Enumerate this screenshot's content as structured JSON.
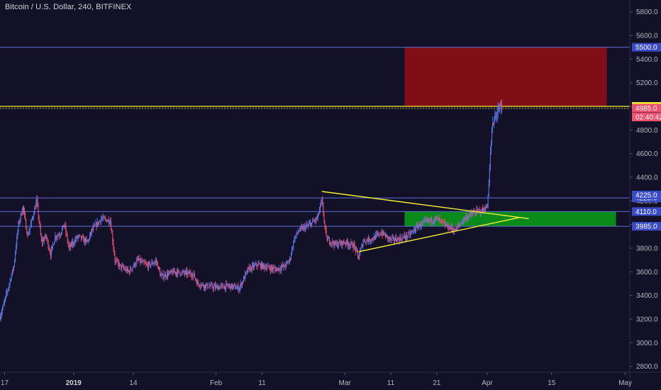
{
  "chart_title": "Bitcoin / U.S. Dollar, 240, BITFINEX",
  "colors": {
    "background": "#131128",
    "up": "#5b7cf0",
    "down": "#f0506e",
    "level": "#5b6fd6",
    "yellow": "#f5f032",
    "red_zone": "#800e16",
    "green_zone": "#0a8a1a"
  },
  "chart_data": {
    "type": "candlestick",
    "title": "Bitcoin / U.S. Dollar, 240, BITFINEX",
    "x_range": [
      "2018-12-16",
      "2019-05-02"
    ],
    "ylim": [
      2750,
      5900
    ],
    "y_ticks": [
      "2800.0",
      "3000.0",
      "3200.0",
      "3400.0",
      "3600.0",
      "3800.0",
      "4000.0",
      "4200.0",
      "4400.0",
      "4600.0",
      "4800.0",
      "5000.0",
      "5200.0",
      "5400.0",
      "5600.0",
      "5800.0"
    ],
    "x_ticks": [
      {
        "date": "2018-12-17",
        "label": "17",
        "bold": false
      },
      {
        "date": "2019-01-01",
        "label": "2019",
        "bold": true
      },
      {
        "date": "2019-01-14",
        "label": "14",
        "bold": false
      },
      {
        "date": "2019-02-01",
        "label": "Feb",
        "bold": false
      },
      {
        "date": "2019-02-11",
        "label": "11",
        "bold": false
      },
      {
        "date": "2019-03-01",
        "label": "Mar",
        "bold": false
      },
      {
        "date": "2019-03-11",
        "label": "11",
        "bold": false
      },
      {
        "date": "2019-03-21",
        "label": "21",
        "bold": false
      },
      {
        "date": "2019-04-01",
        "label": "Apr",
        "bold": false
      },
      {
        "date": "2019-04-15",
        "label": "15",
        "bold": false
      },
      {
        "date": "2019-05-01",
        "label": "May",
        "bold": false
      }
    ],
    "price_anchors": [
      [
        "2018-12-16",
        3220
      ],
      [
        "2018-12-17",
        3350
      ],
      [
        "2018-12-19",
        3650
      ],
      [
        "2018-12-20",
        4000
      ],
      [
        "2018-12-21",
        4150
      ],
      [
        "2018-12-22",
        3900
      ],
      [
        "2018-12-23",
        4050
      ],
      [
        "2018-12-24",
        4200
      ],
      [
        "2018-12-25",
        3850
      ],
      [
        "2018-12-26",
        3900
      ],
      [
        "2018-12-27",
        3750
      ],
      [
        "2018-12-28",
        3900
      ],
      [
        "2018-12-29",
        3920
      ],
      [
        "2018-12-30",
        4000
      ],
      [
        "2018-12-31",
        3800
      ],
      [
        "2019-01-01",
        3850
      ],
      [
        "2019-01-02",
        3900
      ],
      [
        "2019-01-04",
        3850
      ],
      [
        "2019-01-05",
        3950
      ],
      [
        "2019-01-07",
        4050
      ],
      [
        "2019-01-09",
        4030
      ],
      [
        "2019-01-10",
        3700
      ],
      [
        "2019-01-11",
        3650
      ],
      [
        "2019-01-13",
        3600
      ],
      [
        "2019-01-15",
        3700
      ],
      [
        "2019-01-17",
        3650
      ],
      [
        "2019-01-19",
        3690
      ],
      [
        "2019-01-20",
        3560
      ],
      [
        "2019-01-23",
        3600
      ],
      [
        "2019-01-25",
        3590
      ],
      [
        "2019-01-27",
        3580
      ],
      [
        "2019-01-28",
        3500
      ],
      [
        "2019-01-30",
        3480
      ],
      [
        "2019-02-01",
        3470
      ],
      [
        "2019-02-04",
        3480
      ],
      [
        "2019-02-06",
        3460
      ],
      [
        "2019-02-08",
        3620
      ],
      [
        "2019-02-10",
        3660
      ],
      [
        "2019-02-12",
        3640
      ],
      [
        "2019-02-14",
        3620
      ],
      [
        "2019-02-16",
        3650
      ],
      [
        "2019-02-17",
        3700
      ],
      [
        "2019-02-18",
        3880
      ],
      [
        "2019-02-19",
        3950
      ],
      [
        "2019-02-21",
        3990
      ],
      [
        "2019-02-23",
        4050
      ],
      [
        "2019-02-24",
        4200
      ],
      [
        "2019-02-25",
        3880
      ],
      [
        "2019-02-27",
        3830
      ],
      [
        "2019-03-01",
        3850
      ],
      [
        "2019-03-03",
        3820
      ],
      [
        "2019-03-04",
        3720
      ],
      [
        "2019-03-05",
        3860
      ],
      [
        "2019-03-07",
        3880
      ],
      [
        "2019-03-09",
        3930
      ],
      [
        "2019-03-11",
        3870
      ],
      [
        "2019-03-13",
        3880
      ],
      [
        "2019-03-15",
        3910
      ],
      [
        "2019-03-17",
        3990
      ],
      [
        "2019-03-19",
        4030
      ],
      [
        "2019-03-21",
        4050
      ],
      [
        "2019-03-23",
        3990
      ],
      [
        "2019-03-25",
        3950
      ],
      [
        "2019-03-27",
        4050
      ],
      [
        "2019-03-29",
        4100
      ],
      [
        "2019-03-31",
        4120
      ],
      [
        "2019-04-01",
        4150
      ],
      [
        "2019-04-02",
        4800
      ],
      [
        "2019-04-03",
        4950
      ],
      [
        "2019-04-04",
        4985
      ]
    ],
    "horizontal_levels": [
      {
        "price": 5500,
        "label": "5500.0",
        "color": "#5b6fd6",
        "label_bg": "#3a4bc8",
        "label_color": "#ffffff"
      },
      {
        "price": 5000,
        "label": "5000.0",
        "color": "#f5f032",
        "label_bg": "#f5f032",
        "label_color": "#000000"
      },
      {
        "price": 4225,
        "label": "4225.0",
        "color": "#5b6fd6",
        "label_bg": "#3a4bc8",
        "label_color": "#ffffff"
      },
      {
        "price": 4110,
        "label": "4110.0",
        "color": "#5b6fd6",
        "label_bg": "#3a4bc8",
        "label_color": "#ffffff"
      },
      {
        "price": 3985,
        "label": "3985.0",
        "color": "#5b6fd6",
        "label_bg": "#3a4bc8",
        "label_color": "#ffffff"
      }
    ],
    "extra_labels": [
      {
        "price": 4985,
        "label": "4985.0",
        "bg": "#f0506e",
        "color": "#ffffff"
      },
      {
        "price": 4910,
        "label": "02:40:42",
        "bg": "#f0506e",
        "color": "#ffffff"
      },
      {
        "price": 4250,
        "label": "4225.0",
        "bg": "#3a4bc8",
        "color": "#ffffff"
      }
    ],
    "zones": [
      {
        "type": "resistance",
        "x0": "2019-03-14",
        "x1": "2019-04-27",
        "y0": 5000,
        "y1": 5500,
        "color": "#800e16"
      },
      {
        "type": "support",
        "x0": "2019-03-14",
        "x1": "2019-04-29",
        "y0": 3985,
        "y1": 4110,
        "color": "#0a8a1a"
      }
    ],
    "triangle_lines": [
      {
        "from": [
          "2019-02-24",
          4280
        ],
        "to": [
          "2019-04-10",
          4050
        ]
      },
      {
        "from": [
          "2019-03-04",
          3770
        ],
        "to": [
          "2019-04-08",
          4060
        ]
      }
    ]
  }
}
